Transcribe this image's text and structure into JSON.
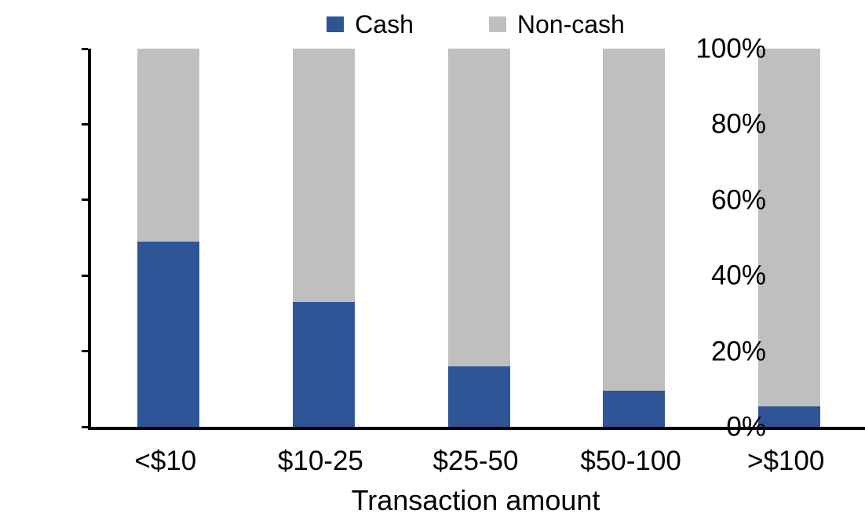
{
  "figure": {
    "background": "#FFFFFF",
    "text_color": "#000000",
    "axis_color": "#000000"
  },
  "legend": {
    "position": "top-center",
    "items": [
      {
        "label": "Cash",
        "color": "#2F5597",
        "swatch": "blue-square"
      },
      {
        "label": "Non-cash",
        "color": "#BFBFBF",
        "swatch": "gray-square"
      }
    ]
  },
  "chart_data": {
    "type": "bar",
    "stacked": true,
    "normalized_to_100_percent": true,
    "title": "",
    "xlabel": "Transaction amount",
    "ylabel": "",
    "categories": [
      "<$10",
      "$10-25",
      "$25-50",
      "$50-100",
      ">$100"
    ],
    "series": [
      {
        "name": "Cash",
        "color": "#2F5597",
        "values": [
          49,
          33,
          16,
          9.5,
          5.5
        ]
      },
      {
        "name": "Non-cash",
        "color": "#BFBFBF",
        "values": [
          51,
          67,
          84,
          90.5,
          94.5
        ]
      }
    ],
    "ylim": [
      0,
      100
    ],
    "ytick_step": 20,
    "ytick_labels": [
      "0%",
      "20%",
      "40%",
      "60%",
      "80%",
      "100%"
    ],
    "grid": false,
    "legend_position": "top"
  }
}
